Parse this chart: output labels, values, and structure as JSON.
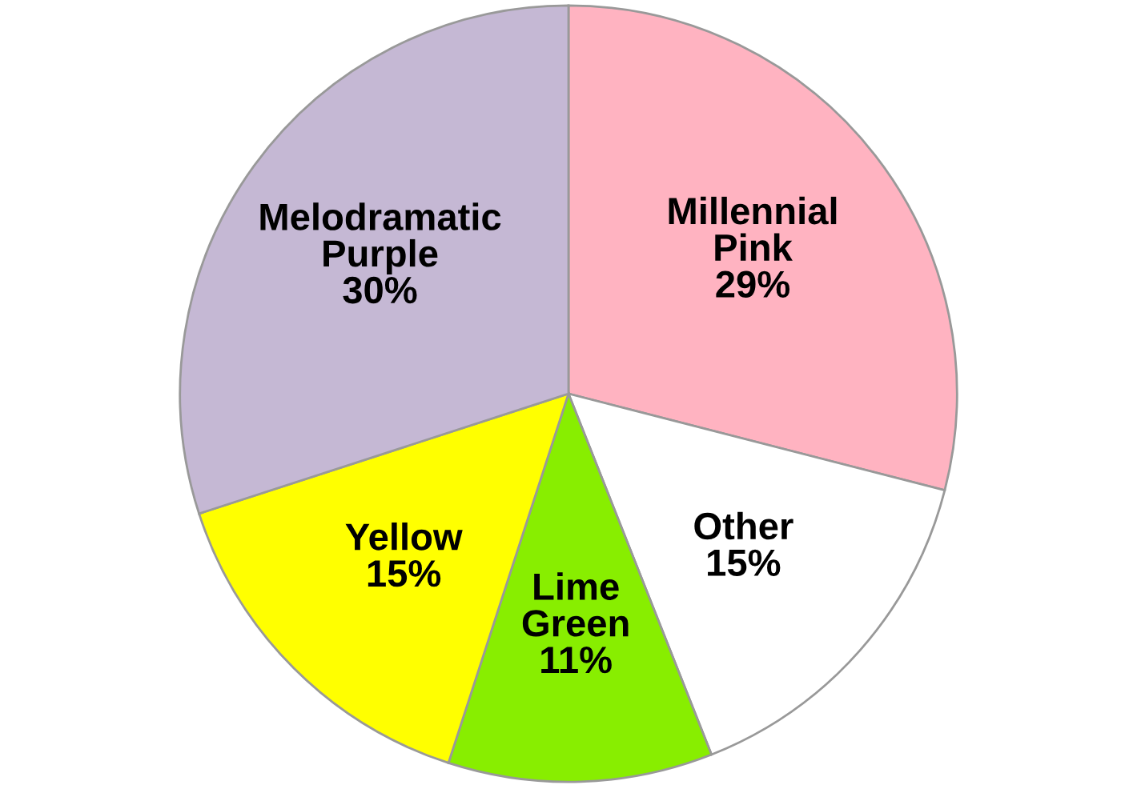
{
  "chart_data": {
    "type": "pie",
    "categories": [
      "Millennial Pink",
      "Other",
      "Lime Green",
      "Yellow",
      "Melodramatic Purple"
    ],
    "values": [
      29,
      15,
      11,
      15,
      30
    ],
    "colors": [
      "#ffb3c1",
      "#ffffff",
      "#88ee00",
      "#ffff00",
      "#c5b8d4"
    ],
    "value_labels": [
      "29%",
      "15%",
      "11%",
      "15%",
      "30%"
    ]
  }
}
